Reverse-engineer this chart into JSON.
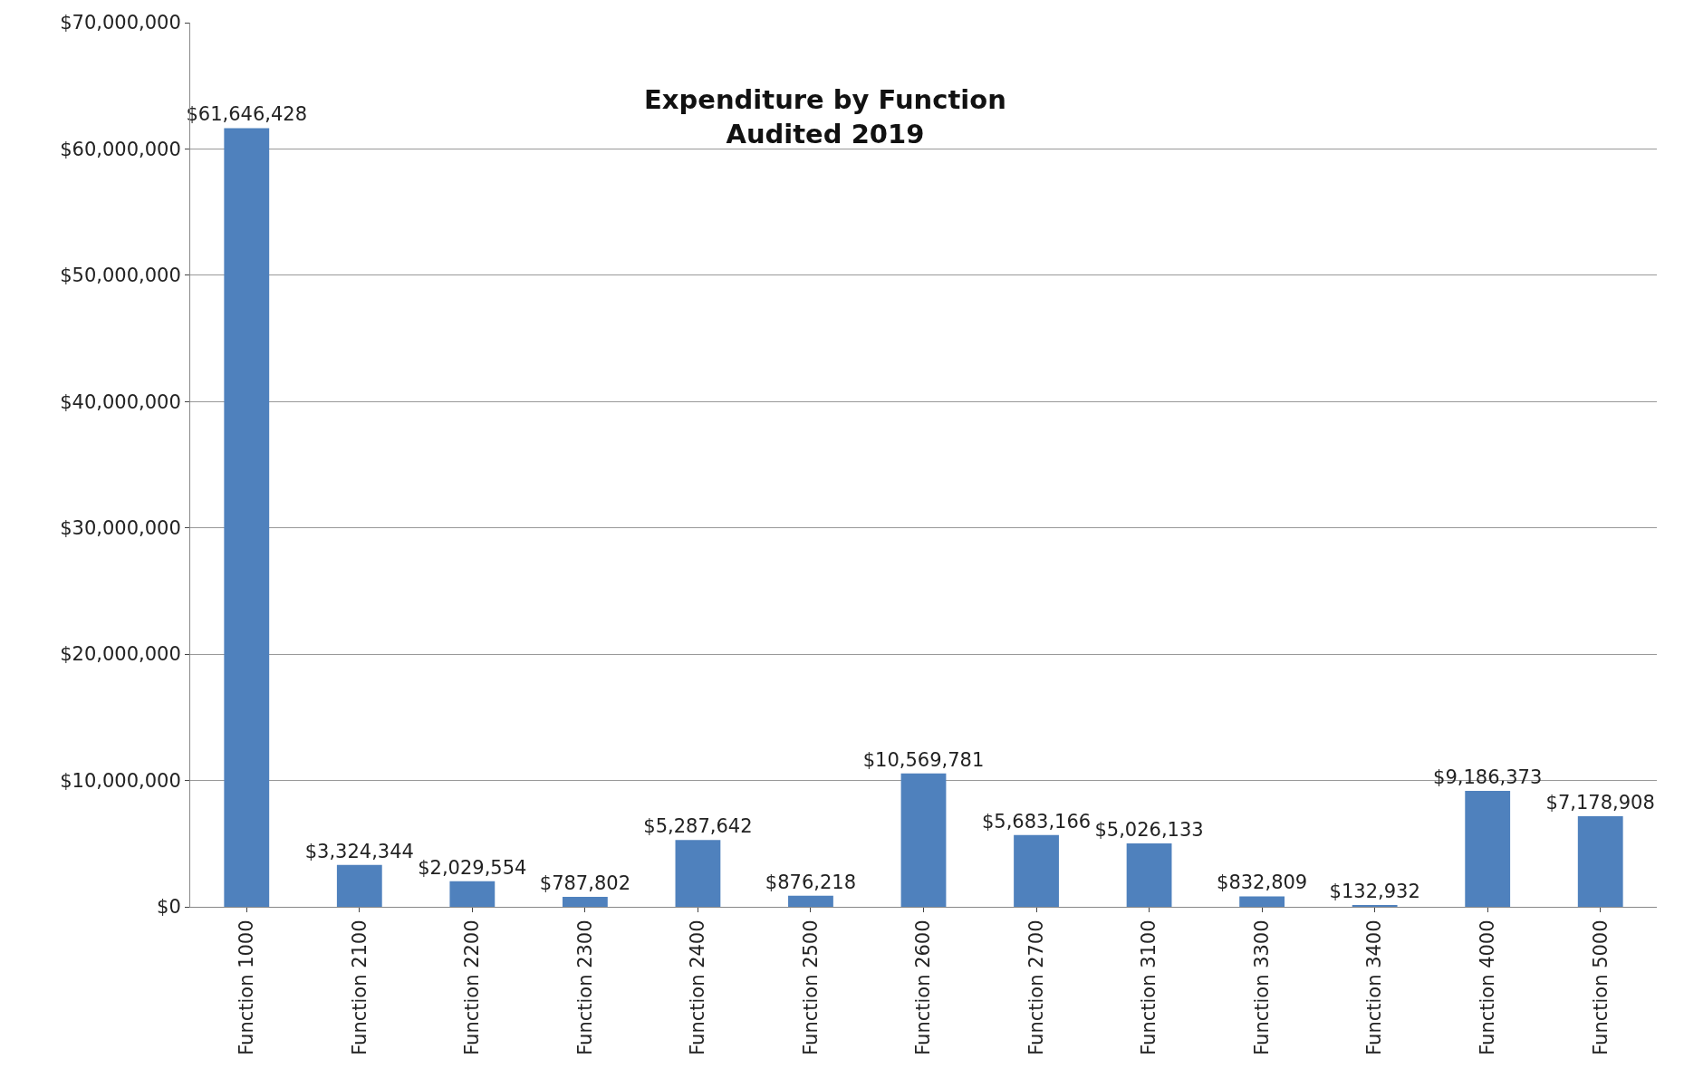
{
  "chart_data": {
    "type": "bar",
    "title": "Expenditure by Function\nAudited 2019",
    "categories": [
      "Function 1000",
      "Function 2100",
      "Function 2200",
      "Function 2300",
      "Function 2400",
      "Function 2500",
      "Function 2600",
      "Function 2700",
      "Function 3100",
      "Function 3300",
      "Function 3400",
      "Function 4000",
      "Function 5000"
    ],
    "values": [
      61646428,
      3324344,
      2029554,
      787802,
      5287642,
      876218,
      10569781,
      5683166,
      5026133,
      832809,
      132932,
      9186373,
      7178908
    ],
    "value_labels": [
      "$61,646,428",
      "$3,324,344",
      "$2,029,554",
      "$787,802",
      "$5,287,642",
      "$876,218",
      "$10,569,781",
      "$5,683,166",
      "$5,026,133",
      "$832,809",
      "$132,932",
      "$9,186,373",
      "$7,178,908"
    ],
    "color": "#4f81bd",
    "ylim": [
      0,
      70000000
    ],
    "yticks": [
      {
        "value": 0,
        "label": "$0"
      },
      {
        "value": 10000000,
        "label": "$10,000,000"
      },
      {
        "value": 20000000,
        "label": "$20,000,000"
      },
      {
        "value": 30000000,
        "label": "$30,000,000"
      },
      {
        "value": 40000000,
        "label": "$40,000,000"
      },
      {
        "value": 50000000,
        "label": "$50,000,000"
      },
      {
        "value": 60000000,
        "label": "$60,000,000"
      },
      {
        "value": 70000000,
        "label": "$70,000,000"
      }
    ],
    "grid": "y",
    "legend": false
  }
}
